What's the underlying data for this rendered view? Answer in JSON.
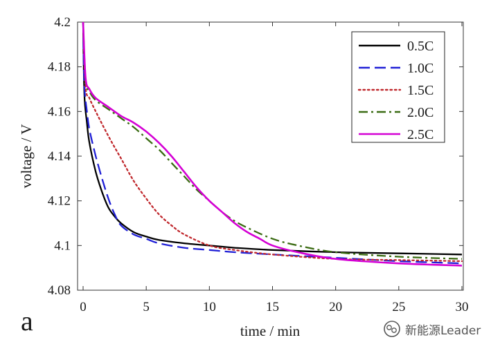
{
  "chart_data": {
    "type": "line",
    "panel_label": "a",
    "xlabel": "time / min",
    "ylabel": "voltage / V",
    "xlim": [
      0,
      30
    ],
    "ylim": [
      4.08,
      4.2
    ],
    "xticks": [
      0,
      5,
      10,
      15,
      20,
      25,
      30
    ],
    "yticks": [
      4.08,
      4.1,
      4.12,
      4.14,
      4.16,
      4.18,
      4.2
    ],
    "ytick_labels": [
      "4.08",
      "4.1",
      "4.12",
      "4.14",
      "4.16",
      "4.18",
      "4.2"
    ],
    "grid": false,
    "legend_position": "top-right",
    "series": [
      {
        "name": "0.5C",
        "color": "#000000",
        "dash": "solid",
        "x": [
          0,
          0.1,
          0.3,
          0.5,
          1,
          1.5,
          2,
          2.5,
          3,
          4,
          5,
          6,
          8,
          10,
          12,
          15,
          20,
          25,
          30
        ],
        "y": [
          4.2,
          4.168,
          4.155,
          4.146,
          4.133,
          4.124,
          4.117,
          4.113,
          4.11,
          4.106,
          4.104,
          4.1025,
          4.101,
          4.1,
          4.099,
          4.098,
          4.097,
          4.0965,
          4.096
        ]
      },
      {
        "name": "1.0C",
        "color": "#1f1fd6",
        "dash": "dashed",
        "x": [
          0,
          0.1,
          0.3,
          0.5,
          1,
          1.5,
          2,
          2.5,
          3,
          4,
          5,
          6,
          8,
          10,
          12,
          15,
          20,
          25,
          30
        ],
        "y": [
          4.2,
          4.172,
          4.16,
          4.152,
          4.14,
          4.13,
          4.121,
          4.114,
          4.109,
          4.105,
          4.103,
          4.101,
          4.099,
          4.098,
          4.097,
          4.096,
          4.0945,
          4.093,
          4.092
        ]
      },
      {
        "name": "1.5C",
        "color": "#c0282d",
        "dash": "dotted",
        "x": [
          0,
          0.2,
          0.5,
          1,
          2,
          3,
          4,
          5,
          6,
          7,
          8,
          10,
          12,
          15,
          20,
          25,
          30
        ],
        "y": [
          4.2,
          4.171,
          4.166,
          4.16,
          4.149,
          4.139,
          4.129,
          4.121,
          4.114,
          4.109,
          4.105,
          4.1,
          4.098,
          4.096,
          4.094,
          4.0935,
          4.093
        ]
      },
      {
        "name": "2.0C",
        "color": "#3a6b12",
        "dash": "dashdot",
        "x": [
          0,
          0.2,
          0.5,
          1,
          2,
          3,
          4,
          5,
          6,
          7,
          8,
          9,
          10,
          11,
          12,
          13,
          15,
          17,
          20,
          25,
          30
        ],
        "y": [
          4.2,
          4.174,
          4.169,
          4.165,
          4.161,
          4.157,
          4.153,
          4.148,
          4.143,
          4.137,
          4.131,
          4.125,
          4.12,
          4.115,
          4.111,
          4.108,
          4.103,
          4.1,
          4.097,
          4.095,
          4.094
        ]
      },
      {
        "name": "2.5C",
        "color": "#d400d4",
        "dash": "solid",
        "x": [
          0,
          0.2,
          0.5,
          1,
          2,
          3,
          4,
          5,
          6,
          7,
          8,
          9,
          10,
          11,
          12,
          13,
          14,
          15,
          17,
          20,
          25,
          30
        ],
        "y": [
          4.2,
          4.175,
          4.17,
          4.166,
          4.162,
          4.158,
          4.155,
          4.151,
          4.146,
          4.14,
          4.133,
          4.126,
          4.12,
          4.115,
          4.11,
          4.106,
          4.103,
          4.1,
          4.097,
          4.094,
          4.092,
          4.091
        ]
      }
    ]
  },
  "watermark": {
    "text": "新能源Leader",
    "icon": "wechat-logo-icon"
  }
}
